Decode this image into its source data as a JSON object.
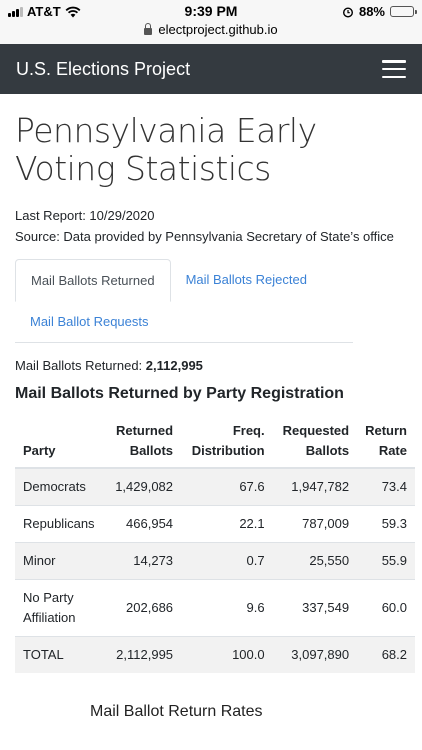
{
  "statusbar": {
    "carrier": "AT&T",
    "time": "9:39 PM",
    "battery": "88%",
    "battery_level": 0.88,
    "url": "electproject.github.io"
  },
  "navbar": {
    "brand": "U.S. Elections Project"
  },
  "page": {
    "title": "Pennsylvania Early Voting Statistics",
    "last_report": "Last Report: 10/29/2020",
    "source": "Source: Data provided by Pennsylvania Secretary of State’s office"
  },
  "tabs": [
    {
      "label": "Mail Ballots Returned"
    },
    {
      "label": "Mail Ballots Rejected"
    },
    {
      "label": "Mail Ballot Requests"
    }
  ],
  "summary": {
    "label": "Mail Ballots Returned:",
    "value": "2,112,995"
  },
  "section_title": "Mail Ballots Returned by Party Registration",
  "table": {
    "headers": {
      "party": "Party",
      "returned": "Returned Ballots",
      "freq": "Freq. Distribution",
      "requested": "Requested Ballots",
      "rate": "Return Rate"
    },
    "rows": [
      {
        "party": "Democrats",
        "returned": "1,429,082",
        "freq": "67.6",
        "requested": "1,947,782",
        "rate": "73.4"
      },
      {
        "party": "Republicans",
        "returned": "466,954",
        "freq": "22.1",
        "requested": "787,009",
        "rate": "59.3"
      },
      {
        "party": "Minor",
        "returned": "14,273",
        "freq": "0.7",
        "requested": "25,550",
        "rate": "55.9"
      },
      {
        "party": "No Party Affiliation",
        "returned": "202,686",
        "freq": "9.6",
        "requested": "337,549",
        "rate": "60.0"
      },
      {
        "party": "TOTAL",
        "returned": "2,112,995",
        "freq": "100.0",
        "requested": "3,097,890",
        "rate": "68.2"
      }
    ]
  },
  "chart_title": "Mail Ballot Return Rates"
}
